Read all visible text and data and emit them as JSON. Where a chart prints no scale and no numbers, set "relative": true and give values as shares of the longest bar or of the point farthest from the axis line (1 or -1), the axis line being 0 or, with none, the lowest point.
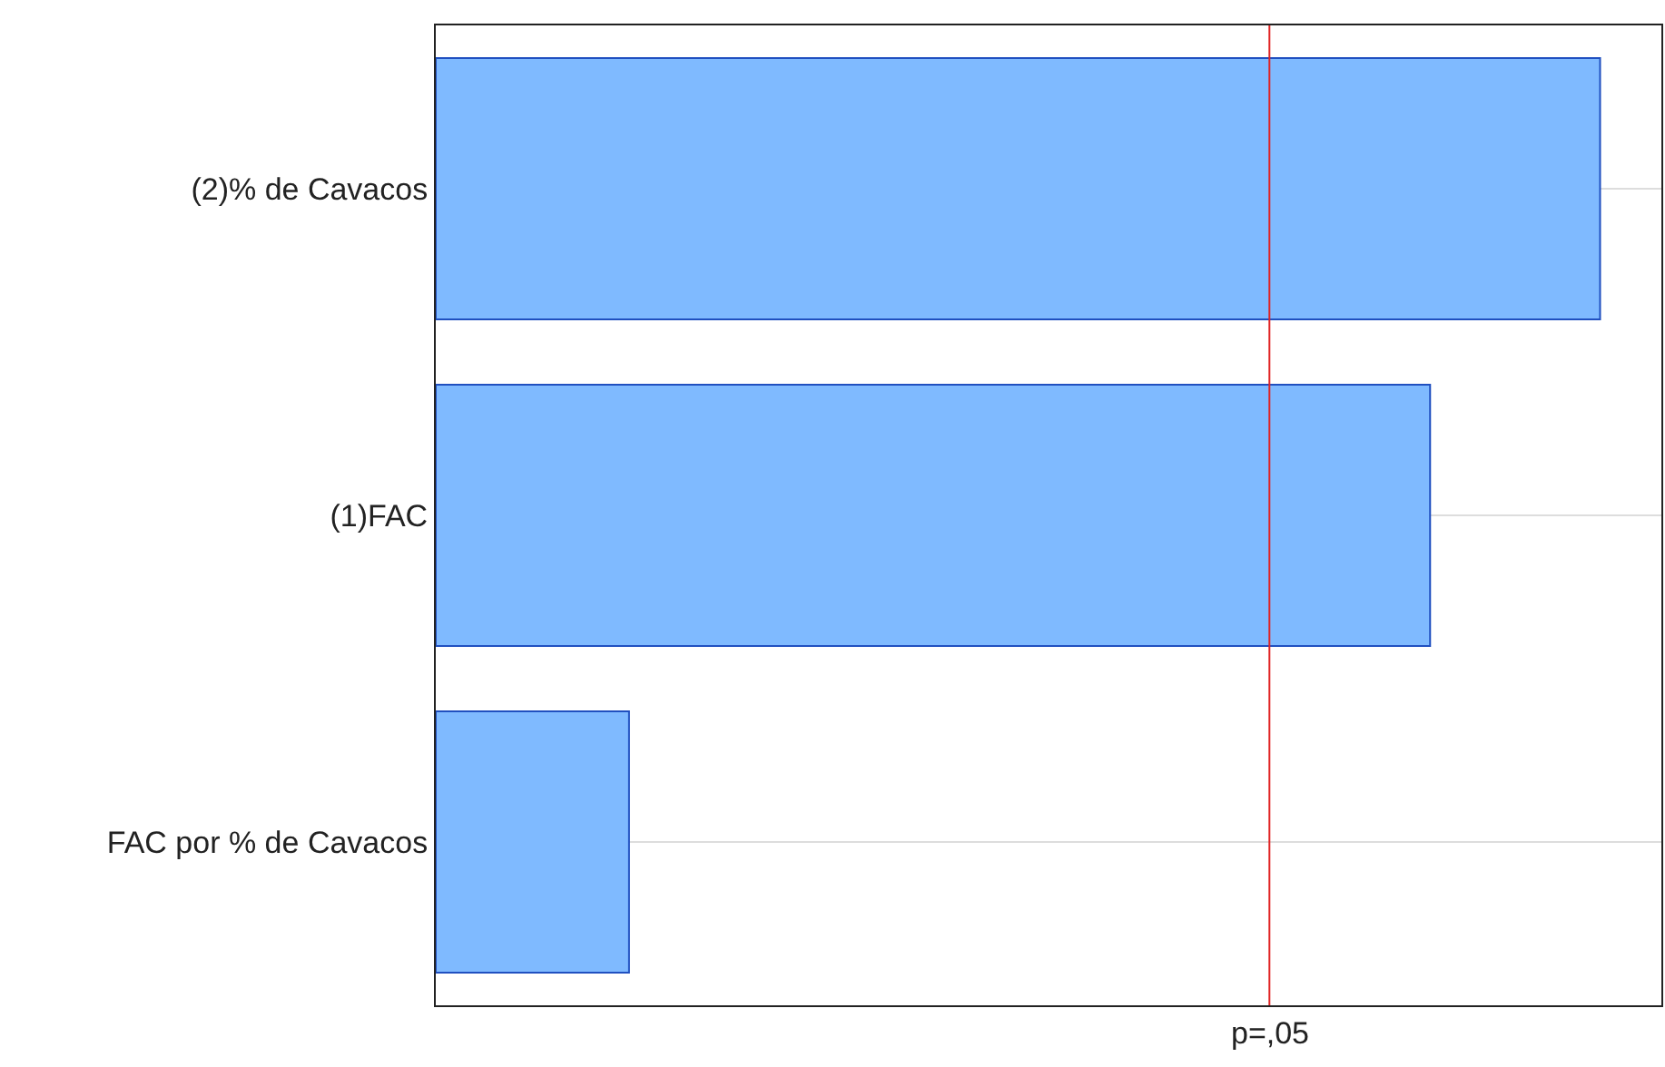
{
  "chart_data": {
    "type": "bar",
    "orientation": "horizontal",
    "relative": true,
    "categories": [
      "(2)% de Cavacos",
      "(1)FAC",
      "FAC por % de Cavacos"
    ],
    "values": [
      1,
      0.854,
      0.166
    ],
    "color": "#7fbaff",
    "ref_lines": [
      {
        "axis": "x",
        "value": 0.716,
        "label": "p=,05",
        "color": "#e02020"
      }
    ],
    "grid": "y",
    "legend": false
  }
}
